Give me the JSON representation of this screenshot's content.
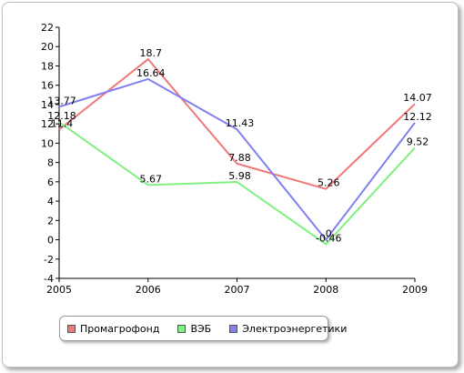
{
  "chart_data": {
    "type": "line",
    "title": "",
    "xlabel": "",
    "ylabel": "",
    "categories": [
      "2005",
      "2006",
      "2007",
      "2008",
      "2009"
    ],
    "ylim": [
      -4,
      22
    ],
    "yticks": [
      -4,
      -2,
      0,
      2,
      4,
      6,
      8,
      10,
      12,
      14,
      16,
      18,
      20,
      22
    ],
    "grid": false,
    "legend_position": "bottom-left",
    "series": [
      {
        "name": "Промагрофонд",
        "color": "#f07878",
        "values": [
          11.4,
          18.7,
          7.88,
          5.26,
          14.07
        ],
        "labels": [
          "11.4",
          "18.7",
          "7.88",
          "5.26",
          "14.07"
        ]
      },
      {
        "name": "ВЭБ",
        "color": "#80f080",
        "values": [
          12.18,
          5.67,
          5.98,
          -0.46,
          9.52
        ],
        "labels": [
          "12.18",
          "5.67",
          "5.98",
          "-0.46",
          "9.52"
        ]
      },
      {
        "name": "Электроэнергетики",
        "color": "#8080f0",
        "values": [
          13.77,
          16.64,
          11.43,
          0,
          12.12
        ],
        "labels": [
          "13.77",
          "16.64",
          "11.43",
          "0",
          "12.12"
        ]
      }
    ]
  }
}
